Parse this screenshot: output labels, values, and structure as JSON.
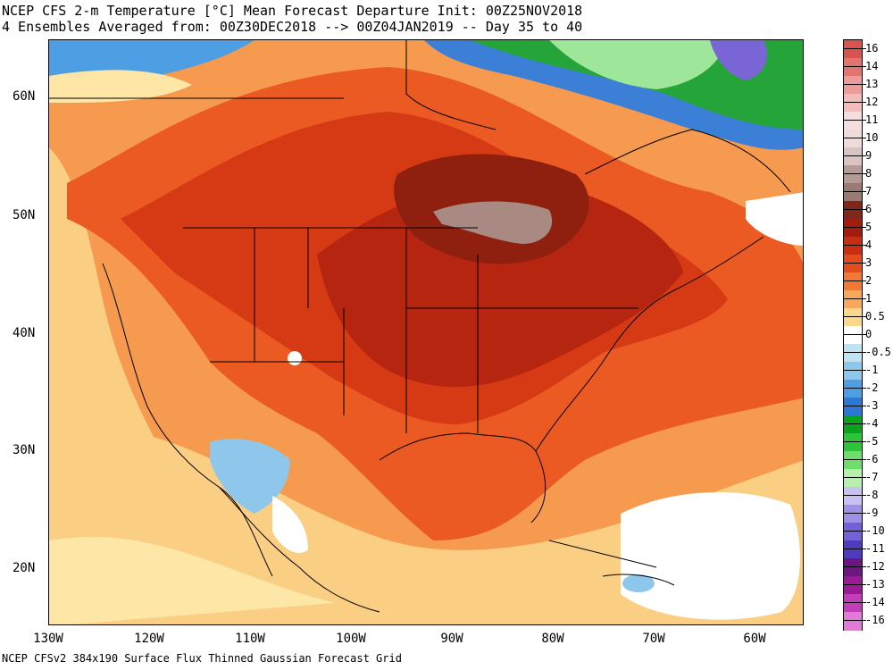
{
  "header": {
    "title_line1": "NCEP CFS 2-m Temperature [°C] Mean Forecast Departure Init: 00Z25NOV2018",
    "title_line2": "4 Ensembles Averaged from: 00Z30DEC2018 --> 00Z04JAN2019 -- Day 35 to 40"
  },
  "footer": "NCEP CFSv2 384x190 Surface Flux Thinned Gaussian Forecast Grid",
  "axes": {
    "lat_labels": [
      "60N",
      "50N",
      "40N",
      "30N",
      "20N"
    ],
    "lon_labels": [
      "130W",
      "120W",
      "110W",
      "100W",
      "90W",
      "80W",
      "70W",
      "60W"
    ]
  },
  "legend": {
    "labels": [
      "16",
      "14",
      "13",
      "12",
      "11",
      "10",
      "9",
      "8",
      "7",
      "6",
      "5",
      "4",
      "3",
      "2",
      "1",
      "0.5",
      "0",
      "-0.5",
      "-1",
      "-2",
      "-3",
      "-4",
      "-5",
      "-6",
      "-7",
      "-8",
      "-9",
      "-10",
      "-11",
      "-12",
      "-13",
      "-14",
      "-16"
    ],
    "colors": [
      "#d9544f",
      "#e27570",
      "#ee9c99",
      "#f3bcba",
      "#f7dede",
      "#efdcda",
      "#d9c4c1",
      "#b59a95",
      "#9a7a73",
      "#80261a",
      "#a31d0f",
      "#c92e12",
      "#e34d1c",
      "#f07a33",
      "#f8a85a",
      "#fbd88c",
      "#ffffff",
      "#bfe3f3",
      "#8fc7ec",
      "#4e9ee3",
      "#2c78d6",
      "#0aa21e",
      "#2ec43a",
      "#6fdd6a",
      "#b5f0ac",
      "#c7c2f2",
      "#9d92e7",
      "#7261d8",
      "#4e3bbd",
      "#6b177f",
      "#9c1a95",
      "#c33cb9",
      "#e27ad8"
    ]
  },
  "map": {
    "region": "North America",
    "variable": "2-m Temperature departure",
    "units": "°C"
  }
}
